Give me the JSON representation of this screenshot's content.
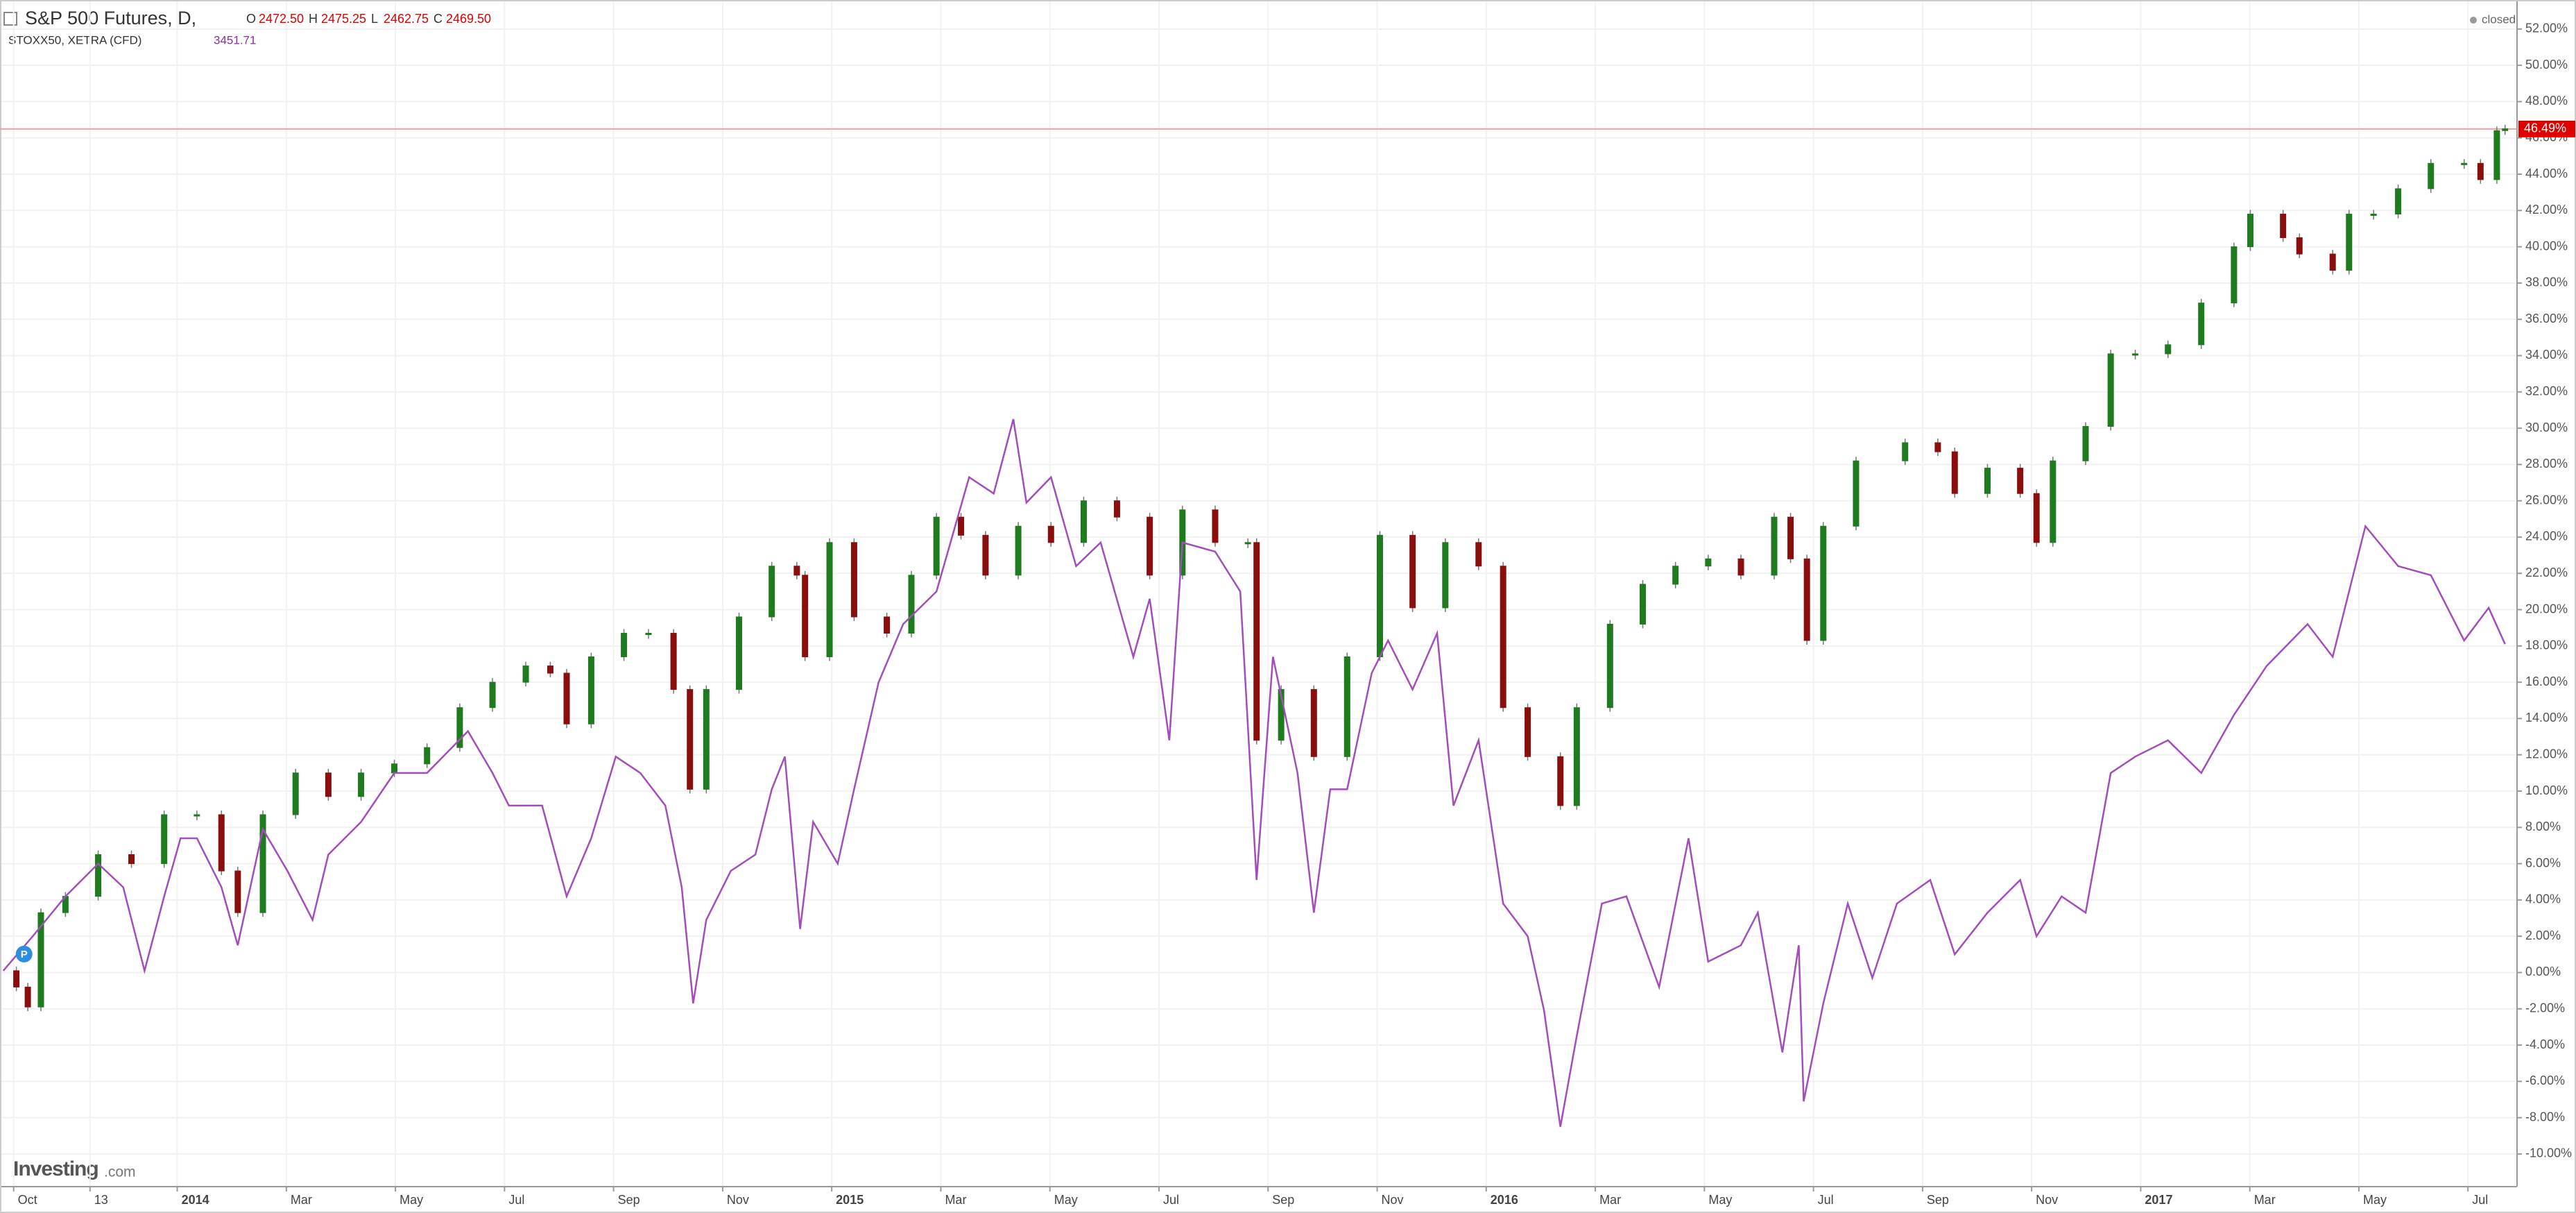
{
  "chart_data": {
    "type": "candlestick-compare",
    "header": {
      "title": "S&P 500 Futures, D,",
      "ohlc": [
        {
          "key": "O",
          "value": "2472.50"
        },
        {
          "key": "H",
          "value": "2475.25"
        },
        {
          "key": "L",
          "value": "2462.75"
        },
        {
          "key": "C",
          "value": "2469.50"
        }
      ],
      "compare_name": "STOXX50, XETRA (CFD)",
      "compare_last": "3451.71",
      "status": "closed"
    },
    "brand": [
      "Investing",
      ".com"
    ],
    "marker": "P",
    "last_value": {
      "value": 46.49,
      "label": "46.49%"
    },
    "xlim": [
      -0.25,
      45.9
    ],
    "xticks": [
      {
        "value": 0,
        "label": "Oct"
      },
      {
        "value": 1.4,
        "label": "13"
      },
      {
        "value": 3,
        "label": "2014"
      },
      {
        "value": 5,
        "label": "Mar"
      },
      {
        "value": 7,
        "label": "May"
      },
      {
        "value": 9,
        "label": "Jul"
      },
      {
        "value": 11,
        "label": "Sep"
      },
      {
        "value": 13,
        "label": "Nov"
      },
      {
        "value": 15,
        "label": "2015"
      },
      {
        "value": 17,
        "label": "Mar"
      },
      {
        "value": 19,
        "label": "May"
      },
      {
        "value": 21,
        "label": "Jul"
      },
      {
        "value": 23,
        "label": "Sep"
      },
      {
        "value": 25,
        "label": "Nov"
      },
      {
        "value": 27,
        "label": "2016"
      },
      {
        "value": 29,
        "label": "Mar"
      },
      {
        "value": 31,
        "label": "May"
      },
      {
        "value": 33,
        "label": "Jul"
      },
      {
        "value": 35,
        "label": "Sep"
      },
      {
        "value": 37,
        "label": "Nov"
      },
      {
        "value": 39,
        "label": "2017"
      },
      {
        "value": 41,
        "label": "Mar"
      },
      {
        "value": 43,
        "label": "May"
      },
      {
        "value": 45,
        "label": "Jul"
      }
    ],
    "ylim": [
      -11.8,
      53.6
    ],
    "yticks": [
      {
        "value": -10,
        "label": "-10.00%"
      },
      {
        "value": -8,
        "label": "-8.00%"
      },
      {
        "value": -6,
        "label": "-6.00%"
      },
      {
        "value": -4,
        "label": "-4.00%"
      },
      {
        "value": -2,
        "label": "-2.00%"
      },
      {
        "value": 0,
        "label": "0.00%"
      },
      {
        "value": 2,
        "label": "2.00%"
      },
      {
        "value": 4,
        "label": "4.00%"
      },
      {
        "value": 6,
        "label": "6.00%"
      },
      {
        "value": 8,
        "label": "8.00%"
      },
      {
        "value": 10,
        "label": "10.00%"
      },
      {
        "value": 12,
        "label": "12.00%"
      },
      {
        "value": 14,
        "label": "14.00%"
      },
      {
        "value": 16,
        "label": "16.00%"
      },
      {
        "value": 18,
        "label": "18.00%"
      },
      {
        "value": 20,
        "label": "20.00%"
      },
      {
        "value": 22,
        "label": "22.00%"
      },
      {
        "value": 24,
        "label": "24.00%"
      },
      {
        "value": 26,
        "label": "26.00%"
      },
      {
        "value": 28,
        "label": "28.00%"
      },
      {
        "value": 30,
        "label": "30.00%"
      },
      {
        "value": 32,
        "label": "32.00%"
      },
      {
        "value": 34,
        "label": "34.00%"
      },
      {
        "value": 36,
        "label": "36.00%"
      },
      {
        "value": 38,
        "label": "38.00%"
      },
      {
        "value": 40,
        "label": "40.00%"
      },
      {
        "value": 42,
        "label": "42.00%"
      },
      {
        "value": 44,
        "label": "44.00%"
      },
      {
        "value": 46,
        "label": "46.00%"
      },
      {
        "value": 48,
        "label": "48.00%"
      },
      {
        "value": 50,
        "label": "50.00%"
      },
      {
        "value": 52,
        "label": "52.00%"
      }
    ],
    "grid": true,
    "series": [
      {
        "name": "S&P 500 Futures",
        "kind": "candle",
        "up_color": "#1e7b1e",
        "down_color": "#8b0e0e",
        "x": [
          -0.19,
          0.05,
          0.26,
          0.5,
          0.95,
          1.55,
          2.16,
          2.76,
          3.36,
          3.81,
          4.11,
          4.57,
          5.17,
          5.77,
          6.37,
          6.98,
          7.58,
          8.18,
          8.78,
          9.39,
          9.84,
          10.14,
          10.59,
          11.19,
          11.64,
          12.1,
          12.4,
          12.7,
          13.3,
          13.9,
          14.36,
          14.51,
          14.96,
          15.41,
          16.01,
          16.46,
          16.92,
          17.37,
          17.82,
          18.42,
          19.02,
          19.62,
          20.23,
          20.83,
          21.43,
          22.03,
          22.63,
          22.79,
          23.24,
          23.84,
          24.45,
          25.05,
          25.65,
          26.25,
          26.86,
          27.31,
          27.76,
          28.36,
          28.66,
          29.27,
          29.87,
          30.47,
          31.07,
          31.67,
          32.28,
          32.58,
          32.88,
          33.18,
          33.78,
          34.68,
          35.28,
          35.59,
          36.19,
          36.79,
          37.09,
          37.39,
          37.99,
          38.45,
          38.9,
          39.5,
          40.11,
          40.71,
          41.01,
          41.61,
          41.91,
          42.52,
          42.82,
          43.27,
          43.72,
          44.32,
          44.93,
          45.23,
          45.53,
          45.68
        ],
        "values": [
          0.1,
          -0.8,
          -1.9,
          3.3,
          4.2,
          6.5,
          6.0,
          8.7,
          8.7,
          5.6,
          3.3,
          8.7,
          11.0,
          9.7,
          11.0,
          11.5,
          12.4,
          14.6,
          16.0,
          16.9,
          16.5,
          13.7,
          17.4,
          18.7,
          18.7,
          15.6,
          10.1,
          15.6,
          19.6,
          22.4,
          21.9,
          17.4,
          23.7,
          19.6,
          18.7,
          21.9,
          25.1,
          24.1,
          21.9,
          24.6,
          23.7,
          26.0,
          25.1,
          21.9,
          25.5,
          23.7,
          23.7,
          12.8,
          15.6,
          11.9,
          17.4,
          24.1,
          20.1,
          23.7,
          22.4,
          14.6,
          11.9,
          9.2,
          14.6,
          19.2,
          21.4,
          22.4,
          22.8,
          21.9,
          25.1,
          22.8,
          18.3,
          24.6,
          28.2,
          29.2,
          28.7,
          26.4,
          27.8,
          26.4,
          23.7,
          28.2,
          30.1,
          34.1,
          34.1,
          34.6,
          36.9,
          40.0,
          41.8,
          40.5,
          39.6,
          38.7,
          41.8,
          41.8,
          43.2,
          44.6,
          44.6,
          43.7,
          46.4,
          46.5
        ]
      },
      {
        "name": "STOXX50",
        "kind": "line",
        "color": "#a24dba",
        "x": [
          -0.19,
          0.35,
          0.95,
          1.55,
          2.01,
          2.4,
          2.76,
          3.06,
          3.36,
          3.81,
          4.11,
          4.57,
          5.02,
          5.48,
          5.77,
          6.37,
          6.98,
          7.58,
          8.33,
          8.78,
          9.08,
          9.69,
          10.14,
          10.59,
          11.04,
          11.49,
          11.95,
          12.25,
          12.46,
          12.7,
          13.15,
          13.6,
          13.9,
          14.14,
          14.42,
          14.66,
          15.11,
          15.41,
          15.86,
          16.31,
          16.92,
          17.52,
          17.97,
          18.33,
          18.57,
          19.02,
          19.48,
          19.93,
          20.53,
          20.83,
          21.19,
          21.43,
          22.03,
          22.49,
          22.79,
          23.09,
          23.54,
          23.84,
          24.14,
          24.45,
          24.9,
          25.2,
          25.65,
          26.1,
          26.4,
          26.86,
          27.31,
          27.76,
          28.06,
          28.36,
          28.66,
          29.12,
          29.57,
          30.17,
          30.71,
          31.07,
          31.67,
          31.98,
          32.43,
          32.73,
          32.82,
          33.18,
          33.63,
          34.08,
          34.53,
          35.14,
          35.59,
          36.19,
          36.79,
          37.09,
          37.55,
          37.99,
          38.45,
          38.9,
          39.5,
          40.11,
          40.71,
          41.31,
          42.06,
          42.52,
          43.12,
          43.72,
          44.32,
          44.93,
          45.38,
          45.68
        ],
        "values": [
          0.1,
          2.0,
          4.2,
          6.0,
          4.7,
          0.1,
          4.2,
          7.4,
          7.4,
          4.7,
          1.5,
          7.9,
          5.6,
          2.9,
          6.5,
          8.3,
          11.0,
          11.0,
          13.3,
          11.0,
          9.2,
          9.2,
          4.2,
          7.4,
          11.9,
          11.0,
          9.2,
          4.7,
          -1.7,
          2.9,
          5.6,
          6.5,
          10.1,
          11.9,
          2.4,
          8.3,
          6.0,
          10.1,
          16.0,
          19.2,
          21.0,
          27.3,
          26.4,
          30.5,
          25.9,
          27.3,
          22.4,
          23.7,
          17.4,
          20.6,
          12.8,
          23.7,
          23.2,
          21.0,
          5.1,
          17.4,
          11.0,
          3.3,
          10.1,
          10.1,
          16.5,
          18.3,
          15.6,
          18.7,
          9.2,
          12.8,
          3.8,
          2.0,
          -2.1,
          -8.5,
          -3.5,
          3.8,
          4.2,
          -0.8,
          7.4,
          0.6,
          1.5,
          3.3,
          -4.4,
          1.5,
          -7.1,
          -1.7,
          3.8,
          -0.3,
          3.8,
          5.1,
          1.0,
          3.3,
          5.1,
          2.0,
          4.2,
          3.3,
          11.0,
          11.9,
          12.8,
          11.0,
          14.2,
          16.9,
          19.2,
          17.4,
          24.6,
          22.4,
          21.9,
          18.3,
          20.1,
          18.1
        ]
      }
    ]
  }
}
